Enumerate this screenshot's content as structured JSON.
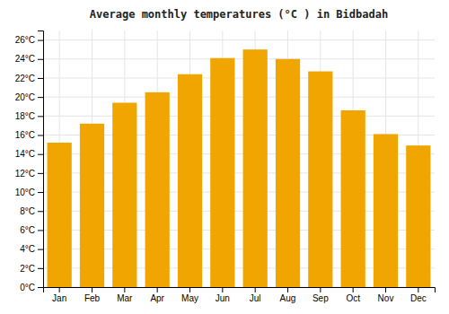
{
  "chart_data": {
    "type": "bar",
    "title": "Average monthly temperatures (°C ) in Bidbadah",
    "categories": [
      "Jan",
      "Feb",
      "Mar",
      "Apr",
      "May",
      "Jun",
      "Jul",
      "Aug",
      "Sep",
      "Oct",
      "Nov",
      "Dec"
    ],
    "values": [
      15.2,
      17.2,
      19.4,
      20.5,
      22.4,
      24.1,
      25.0,
      24.0,
      22.7,
      18.6,
      16.1,
      14.9
    ],
    "color": "#F0A500",
    "ylim": [
      0,
      27
    ],
    "yticks": [
      {
        "value": 0,
        "label": "0°C"
      },
      {
        "value": 2,
        "label": "2°C"
      },
      {
        "value": 4,
        "label": "4°C"
      },
      {
        "value": 6,
        "label": "6°C"
      },
      {
        "value": 8,
        "label": "8°C"
      },
      {
        "value": 10,
        "label": "10°C"
      },
      {
        "value": 12,
        "label": "12°C"
      },
      {
        "value": 14,
        "label": "14°C"
      },
      {
        "value": 16,
        "label": "16°C"
      },
      {
        "value": 18,
        "label": "18°C"
      },
      {
        "value": 20,
        "label": "20°C"
      },
      {
        "value": 22,
        "label": "22°C"
      },
      {
        "value": 24,
        "label": "24°C"
      },
      {
        "value": 26,
        "label": "26°C"
      }
    ],
    "grid": true
  }
}
